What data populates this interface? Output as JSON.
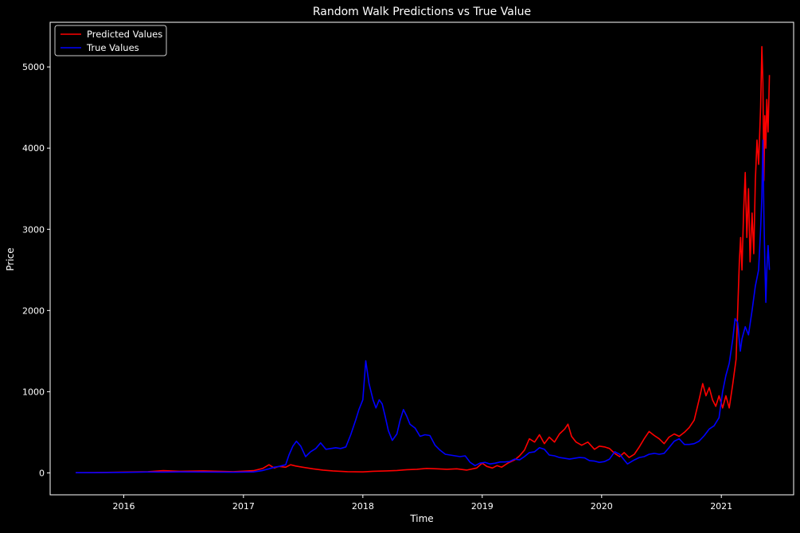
{
  "chart_data": {
    "type": "line",
    "title": "Random Walk Predictions vs True Value",
    "xlabel": "Time",
    "ylabel": "Price",
    "xlim": [
      "2015-05-21",
      "2021-08-10"
    ],
    "ylim": [
      -270,
      5550
    ],
    "x_ticks": [
      "2016",
      "2017",
      "2018",
      "2019",
      "2020",
      "2021"
    ],
    "y_ticks": [
      0,
      1000,
      2000,
      3000,
      4000,
      5000
    ],
    "legend_position": "upper-left",
    "grid": false,
    "series": [
      {
        "name": "Predicted Values",
        "color": "#ff0000",
        "points": [
          [
            "2015-08-07",
            2
          ],
          [
            "2015-10-01",
            3
          ],
          [
            "2016-01-01",
            10
          ],
          [
            "2016-03-15",
            15
          ],
          [
            "2016-05-01",
            28
          ],
          [
            "2016-06-20",
            20
          ],
          [
            "2016-09-01",
            25
          ],
          [
            "2016-12-01",
            15
          ],
          [
            "2017-02-01",
            28
          ],
          [
            "2017-03-01",
            55
          ],
          [
            "2017-03-20",
            100
          ],
          [
            "2017-04-05",
            60
          ],
          [
            "2017-04-20",
            80
          ],
          [
            "2017-05-10",
            70
          ],
          [
            "2017-05-25",
            100
          ],
          [
            "2017-06-10",
            85
          ],
          [
            "2017-07-01",
            70
          ],
          [
            "2017-08-01",
            50
          ],
          [
            "2017-09-01",
            35
          ],
          [
            "2017-10-01",
            25
          ],
          [
            "2017-11-15",
            15
          ],
          [
            "2018-01-01",
            12
          ],
          [
            "2018-02-01",
            20
          ],
          [
            "2018-03-15",
            25
          ],
          [
            "2018-04-15",
            30
          ],
          [
            "2018-05-15",
            40
          ],
          [
            "2018-06-15",
            45
          ],
          [
            "2018-07-15",
            55
          ],
          [
            "2018-08-15",
            50
          ],
          [
            "2018-09-15",
            45
          ],
          [
            "2018-10-15",
            50
          ],
          [
            "2018-11-15",
            35
          ],
          [
            "2018-12-15",
            60
          ],
          [
            "2019-01-01",
            120
          ],
          [
            "2019-01-15",
            80
          ],
          [
            "2019-02-01",
            60
          ],
          [
            "2019-02-15",
            90
          ],
          [
            "2019-03-01",
            70
          ],
          [
            "2019-03-20",
            120
          ],
          [
            "2019-04-10",
            160
          ],
          [
            "2019-04-25",
            210
          ],
          [
            "2019-05-10",
            280
          ],
          [
            "2019-05-25",
            420
          ],
          [
            "2019-06-10",
            380
          ],
          [
            "2019-06-25",
            470
          ],
          [
            "2019-07-10",
            360
          ],
          [
            "2019-07-25",
            440
          ],
          [
            "2019-08-10",
            380
          ],
          [
            "2019-08-25",
            480
          ],
          [
            "2019-09-10",
            540
          ],
          [
            "2019-09-20",
            600
          ],
          [
            "2019-10-01",
            450
          ],
          [
            "2019-10-15",
            380
          ],
          [
            "2019-11-01",
            340
          ],
          [
            "2019-11-20",
            380
          ],
          [
            "2019-12-10",
            290
          ],
          [
            "2019-12-25",
            330
          ],
          [
            "2020-01-10",
            320
          ],
          [
            "2020-01-25",
            300
          ],
          [
            "2020-02-10",
            240
          ],
          [
            "2020-02-25",
            200
          ],
          [
            "2020-03-10",
            250
          ],
          [
            "2020-03-25",
            190
          ],
          [
            "2020-04-10",
            230
          ],
          [
            "2020-04-25",
            320
          ],
          [
            "2020-05-10",
            420
          ],
          [
            "2020-05-25",
            510
          ],
          [
            "2020-06-10",
            460
          ],
          [
            "2020-06-25",
            420
          ],
          [
            "2020-07-10",
            360
          ],
          [
            "2020-07-25",
            440
          ],
          [
            "2020-08-10",
            480
          ],
          [
            "2020-08-25",
            450
          ],
          [
            "2020-09-10",
            500
          ],
          [
            "2020-09-25",
            560
          ],
          [
            "2020-10-10",
            650
          ],
          [
            "2020-10-25",
            900
          ],
          [
            "2020-11-05",
            1100
          ],
          [
            "2020-11-15",
            950
          ],
          [
            "2020-11-25",
            1050
          ],
          [
            "2020-12-05",
            900
          ],
          [
            "2020-12-15",
            820
          ],
          [
            "2020-12-25",
            950
          ],
          [
            "2021-01-05",
            800
          ],
          [
            "2021-01-15",
            950
          ],
          [
            "2021-01-25",
            800
          ],
          [
            "2021-02-05",
            1100
          ],
          [
            "2021-02-15",
            1400
          ],
          [
            "2021-02-25",
            2600
          ],
          [
            "2021-03-01",
            2900
          ],
          [
            "2021-03-05",
            2500
          ],
          [
            "2021-03-10",
            3200
          ],
          [
            "2021-03-15",
            3700
          ],
          [
            "2021-03-20",
            2900
          ],
          [
            "2021-03-25",
            3500
          ],
          [
            "2021-03-30",
            2600
          ],
          [
            "2021-04-05",
            3200
          ],
          [
            "2021-04-10",
            2700
          ],
          [
            "2021-04-15",
            3600
          ],
          [
            "2021-04-20",
            4100
          ],
          [
            "2021-04-25",
            3800
          ],
          [
            "2021-05-01",
            4500
          ],
          [
            "2021-05-05",
            5250
          ],
          [
            "2021-05-08",
            4800
          ],
          [
            "2021-05-11",
            3600
          ],
          [
            "2021-05-14",
            4400
          ],
          [
            "2021-05-17",
            4000
          ],
          [
            "2021-05-20",
            4600
          ],
          [
            "2021-05-24",
            4200
          ],
          [
            "2021-05-28",
            4900
          ]
        ]
      },
      {
        "name": "True Values",
        "color": "#0000ff",
        "points": [
          [
            "2015-08-07",
            2
          ],
          [
            "2015-10-01",
            2
          ],
          [
            "2016-01-01",
            6
          ],
          [
            "2016-03-15",
            11
          ],
          [
            "2016-05-01",
            10
          ],
          [
            "2016-06-20",
            12
          ],
          [
            "2016-09-01",
            11
          ],
          [
            "2016-12-01",
            8
          ],
          [
            "2017-02-01",
            12
          ],
          [
            "2017-03-01",
            30
          ],
          [
            "2017-03-20",
            50
          ],
          [
            "2017-04-05",
            70
          ],
          [
            "2017-04-20",
            80
          ],
          [
            "2017-05-10",
            100
          ],
          [
            "2017-05-20",
            220
          ],
          [
            "2017-06-01",
            330
          ],
          [
            "2017-06-12",
            390
          ],
          [
            "2017-06-25",
            330
          ],
          [
            "2017-07-10",
            200
          ],
          [
            "2017-07-25",
            260
          ],
          [
            "2017-08-10",
            300
          ],
          [
            "2017-08-25",
            370
          ],
          [
            "2017-09-10",
            290
          ],
          [
            "2017-09-25",
            300
          ],
          [
            "2017-10-10",
            310
          ],
          [
            "2017-10-25",
            300
          ],
          [
            "2017-11-10",
            320
          ],
          [
            "2017-11-25",
            470
          ],
          [
            "2017-12-10",
            650
          ],
          [
            "2017-12-20",
            780
          ],
          [
            "2018-01-01",
            900
          ],
          [
            "2018-01-10",
            1380
          ],
          [
            "2018-01-20",
            1100
          ],
          [
            "2018-02-01",
            900
          ],
          [
            "2018-02-10",
            800
          ],
          [
            "2018-02-20",
            900
          ],
          [
            "2018-03-01",
            850
          ],
          [
            "2018-03-10",
            700
          ],
          [
            "2018-03-20",
            520
          ],
          [
            "2018-04-01",
            400
          ],
          [
            "2018-04-15",
            480
          ],
          [
            "2018-04-25",
            650
          ],
          [
            "2018-05-05",
            780
          ],
          [
            "2018-05-15",
            700
          ],
          [
            "2018-05-25",
            600
          ],
          [
            "2018-06-10",
            550
          ],
          [
            "2018-06-25",
            450
          ],
          [
            "2018-07-10",
            470
          ],
          [
            "2018-07-25",
            460
          ],
          [
            "2018-08-10",
            340
          ],
          [
            "2018-08-25",
            280
          ],
          [
            "2018-09-10",
            230
          ],
          [
            "2018-09-25",
            220
          ],
          [
            "2018-10-10",
            210
          ],
          [
            "2018-10-25",
            200
          ],
          [
            "2018-11-10",
            210
          ],
          [
            "2018-11-25",
            130
          ],
          [
            "2018-12-10",
            90
          ],
          [
            "2018-12-25",
            120
          ],
          [
            "2019-01-10",
            130
          ],
          [
            "2019-01-25",
            110
          ],
          [
            "2019-02-10",
            120
          ],
          [
            "2019-02-25",
            135
          ],
          [
            "2019-03-10",
            135
          ],
          [
            "2019-03-25",
            140
          ],
          [
            "2019-04-10",
            170
          ],
          [
            "2019-04-25",
            160
          ],
          [
            "2019-05-10",
            200
          ],
          [
            "2019-05-25",
            250
          ],
          [
            "2019-06-10",
            260
          ],
          [
            "2019-06-25",
            310
          ],
          [
            "2019-07-10",
            290
          ],
          [
            "2019-07-25",
            220
          ],
          [
            "2019-08-10",
            210
          ],
          [
            "2019-08-25",
            190
          ],
          [
            "2019-09-10",
            180
          ],
          [
            "2019-09-25",
            170
          ],
          [
            "2019-10-10",
            180
          ],
          [
            "2019-10-25",
            190
          ],
          [
            "2019-11-10",
            185
          ],
          [
            "2019-11-25",
            150
          ],
          [
            "2019-12-10",
            145
          ],
          [
            "2019-12-25",
            130
          ],
          [
            "2020-01-10",
            140
          ],
          [
            "2020-01-25",
            170
          ],
          [
            "2020-02-10",
            260
          ],
          [
            "2020-02-25",
            230
          ],
          [
            "2020-03-10",
            160
          ],
          [
            "2020-03-20",
            110
          ],
          [
            "2020-04-10",
            160
          ],
          [
            "2020-04-25",
            190
          ],
          [
            "2020-05-10",
            200
          ],
          [
            "2020-05-25",
            230
          ],
          [
            "2020-06-10",
            240
          ],
          [
            "2020-06-25",
            230
          ],
          [
            "2020-07-10",
            240
          ],
          [
            "2020-07-25",
            310
          ],
          [
            "2020-08-10",
            390
          ],
          [
            "2020-08-25",
            420
          ],
          [
            "2020-09-10",
            350
          ],
          [
            "2020-09-25",
            350
          ],
          [
            "2020-10-10",
            360
          ],
          [
            "2020-10-25",
            390
          ],
          [
            "2020-11-10",
            460
          ],
          [
            "2020-11-25",
            540
          ],
          [
            "2020-12-10",
            580
          ],
          [
            "2020-12-25",
            680
          ],
          [
            "2021-01-05",
            1000
          ],
          [
            "2021-01-15",
            1200
          ],
          [
            "2021-01-25",
            1350
          ],
          [
            "2021-02-05",
            1650
          ],
          [
            "2021-02-12",
            1900
          ],
          [
            "2021-02-20",
            1850
          ],
          [
            "2021-02-28",
            1500
          ],
          [
            "2021-03-05",
            1650
          ],
          [
            "2021-03-15",
            1800
          ],
          [
            "2021-03-25",
            1700
          ],
          [
            "2021-04-05",
            2000
          ],
          [
            "2021-04-15",
            2300
          ],
          [
            "2021-04-25",
            2500
          ],
          [
            "2021-05-01",
            3000
          ],
          [
            "2021-05-05",
            3400
          ],
          [
            "2021-05-08",
            4100
          ],
          [
            "2021-05-11",
            3200
          ],
          [
            "2021-05-14",
            2600
          ],
          [
            "2021-05-17",
            2100
          ],
          [
            "2021-05-20",
            2500
          ],
          [
            "2021-05-24",
            2800
          ],
          [
            "2021-05-28",
            2500
          ]
        ]
      }
    ]
  }
}
